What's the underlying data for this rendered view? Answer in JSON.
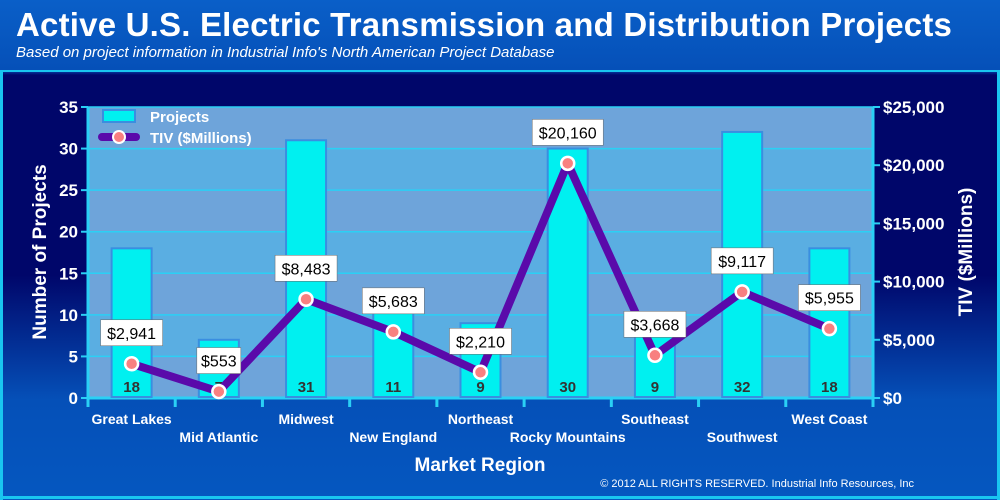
{
  "title": "Active U.S. Electric Transmission and Distribution Projects",
  "subtitle": "Based on project information in Industrial Info's North American Project Database",
  "copyright": "© 2012 ALL RIGHTS RESERVED. Industrial Info Resources, Inc",
  "chart_data": {
    "type": "bar",
    "categories": [
      "Great Lakes",
      "Mid Atlantic",
      "Midwest",
      "New England",
      "Northeast",
      "Rocky Mountains",
      "Southeast",
      "Southwest",
      "West Coast"
    ],
    "series": [
      {
        "name": "Projects",
        "type": "bar",
        "axis": "left",
        "values": [
          18,
          7,
          31,
          11,
          9,
          30,
          9,
          32,
          18
        ],
        "labels": [
          "18",
          "7",
          "31",
          "11",
          "9",
          "30",
          "9",
          "32",
          "18"
        ],
        "color": "#00f0f0"
      },
      {
        "name": "TIV ($Millions)",
        "type": "line",
        "axis": "right",
        "values": [
          2941,
          553,
          8483,
          5683,
          2210,
          20160,
          3668,
          9117,
          5955
        ],
        "labels": [
          "$2,941",
          "$553",
          "$8,483",
          "$5,683",
          "$2,210",
          "$20,160",
          "$3,668",
          "$9,117",
          "$5,955"
        ],
        "color": "#5a0aaa",
        "marker_color": "#f88080"
      }
    ],
    "xlabel": "Market Region",
    "ylabel": "Number of Projects",
    "y2label": "TIV ($Millions)",
    "ylim": [
      0,
      35
    ],
    "y2lim": [
      0,
      25000
    ],
    "yticks": [
      "0",
      "5",
      "10",
      "15",
      "20",
      "25",
      "30",
      "35"
    ],
    "y2ticks": [
      "$0",
      "$5,000",
      "$10,000",
      "$15,000",
      "$20,000",
      "$25,000"
    ],
    "legend": "top-left",
    "grid": true
  }
}
